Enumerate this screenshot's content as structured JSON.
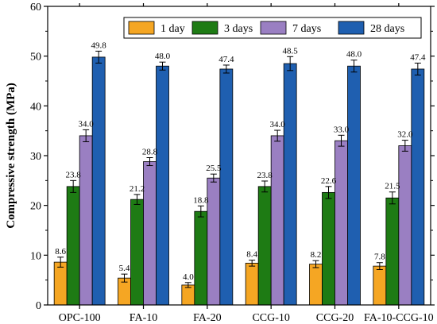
{
  "chart_data": {
    "type": "bar",
    "ylabel": "Compressive strength (MPa)",
    "xlabel": "",
    "ylim": [
      0,
      60
    ],
    "yticks": [
      0,
      10,
      20,
      30,
      40,
      50,
      60
    ],
    "legend_position": "top-right",
    "categories": [
      "OPC-100",
      "FA-10",
      "FA-20",
      "CCG-10",
      "CCG-20",
      "FA-10-CCG-10"
    ],
    "series": [
      {
        "name": "1 day",
        "color": "#F5A623",
        "values": [
          8.6,
          5.4,
          4.0,
          8.4,
          8.2,
          7.8
        ],
        "errors": [
          1.0,
          0.8,
          0.5,
          0.6,
          0.7,
          0.7
        ],
        "labels": [
          "8.6",
          "5.4",
          "4.0",
          "8.4",
          "8.2",
          "7.8"
        ]
      },
      {
        "name": "3 days",
        "color": "#1E7B14",
        "values": [
          23.8,
          21.2,
          18.8,
          23.8,
          22.6,
          21.5
        ],
        "errors": [
          1.2,
          1.0,
          1.1,
          1.1,
          1.2,
          1.2
        ],
        "labels": [
          "23.8",
          "21.2",
          "18.8",
          "23.8",
          "22.6",
          "21.5"
        ]
      },
      {
        "name": "7 days",
        "color": "#9A7FC2",
        "values": [
          34.0,
          28.8,
          25.5,
          34.0,
          33.0,
          32.0
        ],
        "errors": [
          1.2,
          0.8,
          0.8,
          1.1,
          1.1,
          1.1
        ],
        "labels": [
          "34.0",
          "28.8",
          "25.5",
          "34.0",
          "33.0",
          "32.0"
        ]
      },
      {
        "name": "28 days",
        "color": "#1F5FB0",
        "values": [
          49.8,
          48.0,
          47.4,
          48.5,
          48.0,
          47.4
        ],
        "errors": [
          1.2,
          0.8,
          0.8,
          1.4,
          1.2,
          1.2
        ],
        "labels": [
          "49.8",
          "48.0",
          "47.4",
          "48.5",
          "48.0",
          "47.4"
        ]
      }
    ]
  }
}
